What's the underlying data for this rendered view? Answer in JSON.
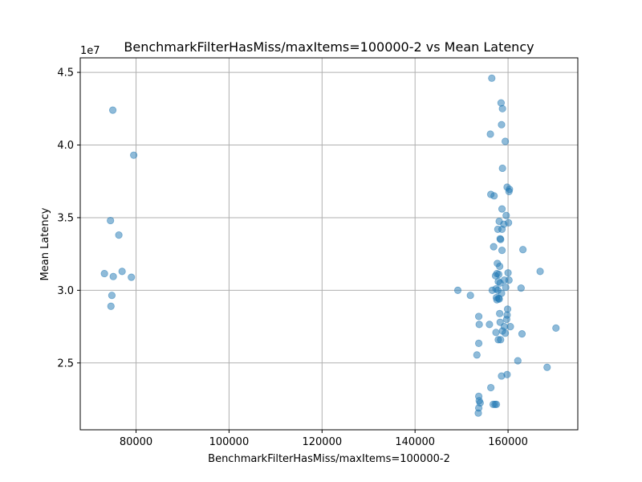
{
  "chart_data": {
    "type": "scatter",
    "title": "BenchmarkFilterHasMiss/maxItems=100000-2 vs Mean Latency",
    "xlabel": "BenchmarkFilterHasMiss/maxItems=100000-2",
    "ylabel": "Mean Latency",
    "y_offset_text": "1e7",
    "xlim": [
      68000,
      175000
    ],
    "ylim": [
      2.04,
      4.6
    ],
    "x_ticks": [
      80000,
      100000,
      120000,
      140000,
      160000
    ],
    "y_ticks": [
      2.5,
      3.0,
      3.5,
      4.0,
      4.5
    ],
    "x_tick_labels": [
      "80000",
      "100000",
      "120000",
      "140000",
      "160000"
    ],
    "y_tick_labels": [
      "2.5",
      "3.0",
      "3.5",
      "4.0",
      "4.5"
    ],
    "grid": true,
    "marker_color": "#1f77b4",
    "marker_alpha": 0.5,
    "series": [
      {
        "x": [
          75000,
          79500,
          74500,
          76300,
          73200,
          75100,
          77000,
          79000,
          74800,
          74600,
          156500,
          158500,
          158800,
          158600,
          156200,
          159400,
          158800,
          159800,
          160300,
          160200,
          156300,
          157000,
          158700,
          159600,
          158100,
          160100,
          159100,
          157800,
          158700,
          158300,
          156900,
          158400,
          163200,
          158700,
          157700,
          158200,
          160000,
          157600,
          158000,
          166900,
          157300,
          159200,
          160200,
          157900,
          158300,
          156600,
          159500,
          157400,
          157800,
          162800,
          158600,
          157500,
          158000,
          157600,
          149200,
          151900,
          158100,
          159900,
          159800,
          159700,
          158200,
          153700,
          153800,
          156000,
          158300,
          159200,
          160500,
          159400,
          157400,
          157900,
          158800,
          158400,
          163000,
          170300,
          153700,
          153300,
          162100,
          168400,
          159800,
          158600,
          156300,
          153700,
          153800,
          154000,
          157200,
          156800,
          157500,
          153700,
          153600
        ],
        "y": [
          4.24,
          3.93,
          3.48,
          3.38,
          3.115,
          3.095,
          3.13,
          3.09,
          2.965,
          2.89,
          4.46,
          4.29,
          4.25,
          4.14,
          4.075,
          4.025,
          3.84,
          3.71,
          3.695,
          3.68,
          3.66,
          3.65,
          3.56,
          3.515,
          3.475,
          3.465,
          3.455,
          3.42,
          3.42,
          3.355,
          3.3,
          3.35,
          3.28,
          3.275,
          3.185,
          3.165,
          3.12,
          3.115,
          3.11,
          3.13,
          3.1,
          3.07,
          3.07,
          3.06,
          3.05,
          3.0,
          3.02,
          3.01,
          3.0,
          3.015,
          2.98,
          2.95,
          2.945,
          2.935,
          3.0,
          2.965,
          2.94,
          2.87,
          2.83,
          2.8,
          2.84,
          2.82,
          2.765,
          2.765,
          2.78,
          2.75,
          2.75,
          2.705,
          2.71,
          2.66,
          2.72,
          2.66,
          2.7,
          2.74,
          2.635,
          2.555,
          2.515,
          2.47,
          2.42,
          2.41,
          2.33,
          2.27,
          2.24,
          2.225,
          2.215,
          2.215,
          2.215,
          2.19,
          2.155
        ]
      }
    ]
  }
}
